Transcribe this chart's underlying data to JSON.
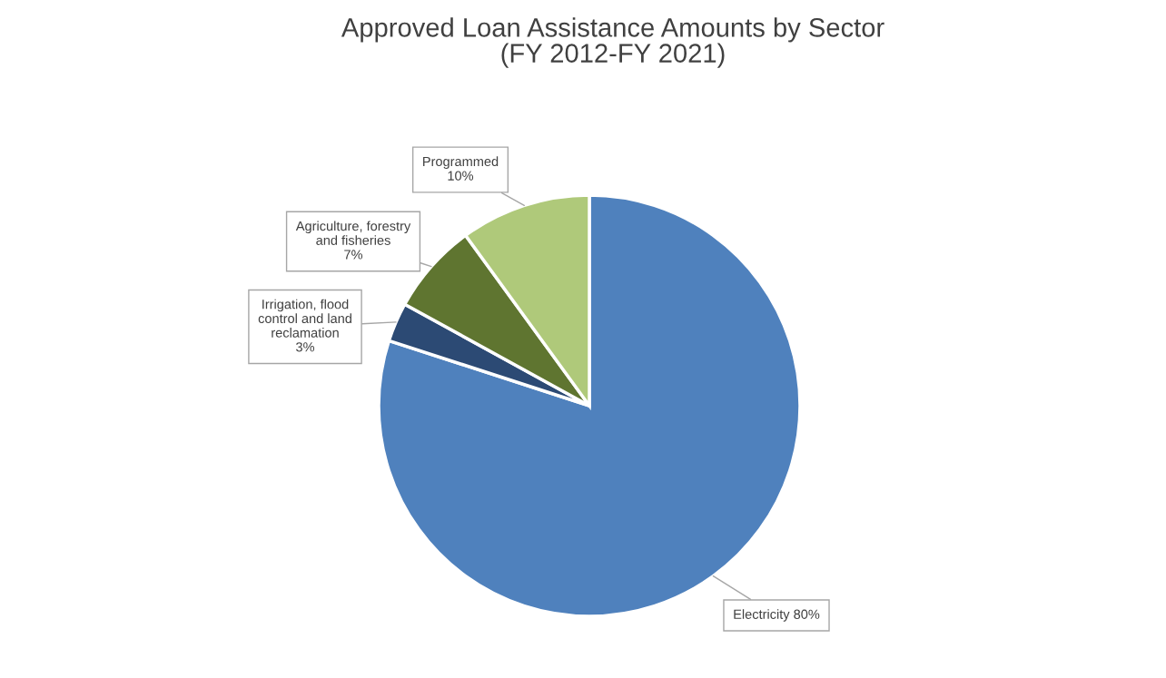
{
  "chart_data": {
    "type": "pie",
    "title": "Approved Loan Assistance Amounts by Sector\n(FY 2012-FY 2021)",
    "categories": [
      "Electricity",
      "Irrigation, flood\ncontrol and land\nreclamation",
      "Agriculture, forestry\nand fisheries",
      "Programmed"
    ],
    "values": [
      80,
      3,
      7,
      10
    ],
    "colors": [
      "#4f81bd",
      "#2c4a74",
      "#5f7530",
      "#afc97a"
    ],
    "value_labels": [
      "80%",
      "3%",
      "7%",
      "10%"
    ],
    "legend": false
  }
}
